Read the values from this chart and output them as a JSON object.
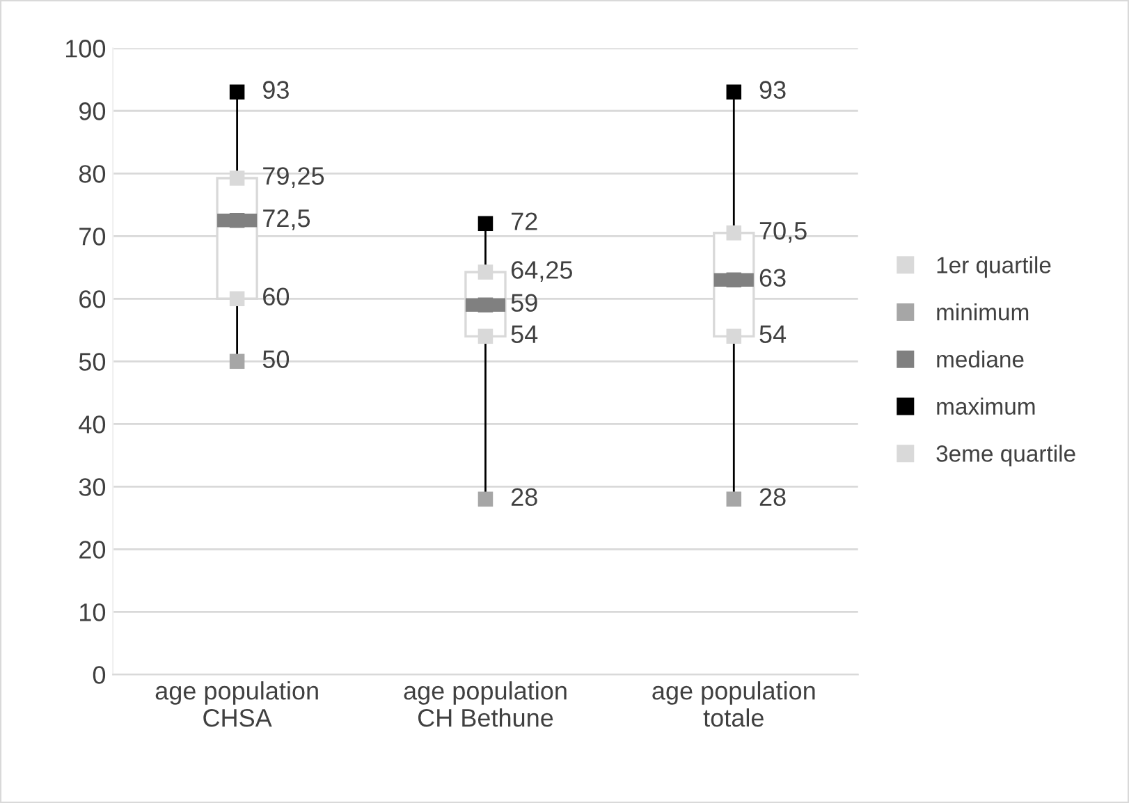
{
  "chart_data": {
    "type": "box",
    "categories": [
      "age population\nCHSA",
      "age population\nCH Bethune",
      "age population\ntotale"
    ],
    "boxes": [
      {
        "low": 50,
        "q1": 60,
        "median": 72.5,
        "q3": 79.25,
        "high": 93
      },
      {
        "low": 28,
        "q1": 54,
        "median": 59,
        "q3": 64.25,
        "high": 72
      },
      {
        "low": 28,
        "q1": 54,
        "median": 63,
        "q3": 70.5,
        "high": 93
      }
    ],
    "series": [
      {
        "name": "1er quartile",
        "type": "scatter",
        "marker": "square",
        "color": "#d9d9d9",
        "values": [
          60,
          54,
          54
        ],
        "value_labels": [
          "60",
          "54",
          "54"
        ]
      },
      {
        "name": "minimum",
        "type": "scatter",
        "marker": "square",
        "color": "#a6a6a6",
        "values": [
          50,
          28,
          28
        ],
        "value_labels": [
          "50",
          "28",
          "28"
        ]
      },
      {
        "name": "mediane",
        "type": "scatter",
        "marker": "square",
        "color": "#808080",
        "values": [
          72.5,
          59,
          63
        ],
        "value_labels": [
          "72,5",
          "59",
          "63"
        ]
      },
      {
        "name": "maximum",
        "type": "scatter",
        "marker": "square",
        "color": "#000000",
        "values": [
          93,
          72,
          93
        ],
        "value_labels": [
          "93",
          "72",
          "93"
        ]
      },
      {
        "name": "3eme quartile",
        "type": "scatter",
        "marker": "square",
        "color": "#d9d9d9",
        "values": [
          79.25,
          64.25,
          70.5
        ],
        "value_labels": [
          "79,25",
          "64,25",
          "70,5"
        ]
      }
    ],
    "ylim": [
      0,
      100
    ],
    "yticks": [
      0,
      10,
      20,
      30,
      40,
      50,
      60,
      70,
      80,
      90,
      100
    ],
    "grid": "y",
    "legend": "right"
  }
}
